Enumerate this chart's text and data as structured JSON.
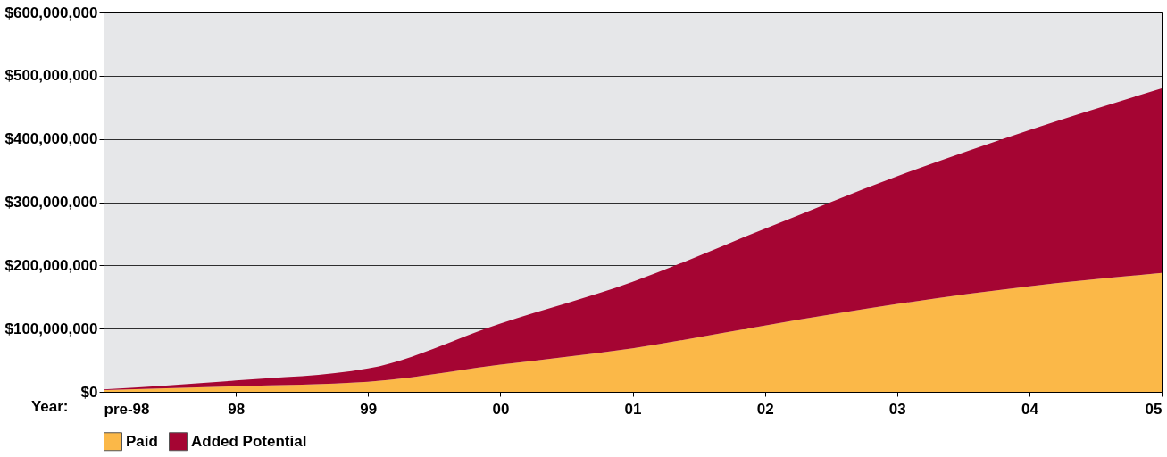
{
  "chart_data": {
    "type": "area",
    "stacked": true,
    "xlabel": "Year:",
    "categories": [
      "pre-98",
      "98",
      "99",
      "00",
      "01",
      "02",
      "03",
      "04",
      "05"
    ],
    "series": [
      {
        "name": "Paid",
        "color": "#fbb848",
        "values": [
          3000000,
          9000000,
          16000000,
          43000000,
          69000000,
          105000000,
          139000000,
          167000000,
          188000000
        ]
      },
      {
        "name": "Added Potential",
        "color": "#a50533",
        "values": [
          1000000,
          9000000,
          21000000,
          65000000,
          105000000,
          153000000,
          202000000,
          247000000,
          292000000
        ]
      }
    ],
    "ylim": [
      0,
      600000000
    ],
    "yticks": [
      {
        "value": 0,
        "label": "$0"
      },
      {
        "value": 100000000,
        "label": "$100,000,000"
      },
      {
        "value": 200000000,
        "label": "$200,000,000"
      },
      {
        "value": 300000000,
        "label": "$300,000,000"
      },
      {
        "value": 400000000,
        "label": "$400,000,000"
      },
      {
        "value": 500000000,
        "label": "$500,000,000"
      },
      {
        "value": 600000000,
        "label": "$600,000,000"
      }
    ],
    "grid": "y",
    "legend": "bottom"
  }
}
